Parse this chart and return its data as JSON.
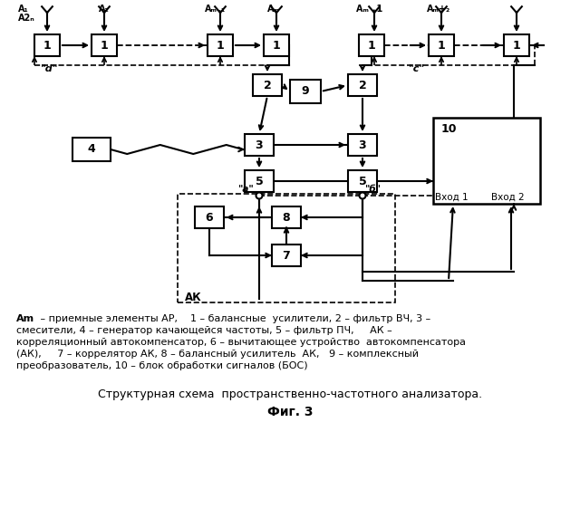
{
  "bg_color": "#ffffff",
  "title_text": "Структурная схема  пространственно-частотного анализатора.",
  "fig3_text": "Фиг. 3",
  "caption_lines": [
    "    Am – приемные элементы АР,    1 – балансные  усилители, 2 – фильтр ВЧ, 3 –",
    "смесители, 4 – генератор качающейся частоты, 5 – фильтр ПЧ,     АК –",
    "корреляционный автокомпенсатор, 6 – вычитающее устройство  автокомпенсатора",
    "(АК),     7 – коррелятор АК, 8 – балансный усилитель  АК,   9 – комплексный",
    "преобразователь, 10 – блок обработки сигналов (БОС)"
  ]
}
